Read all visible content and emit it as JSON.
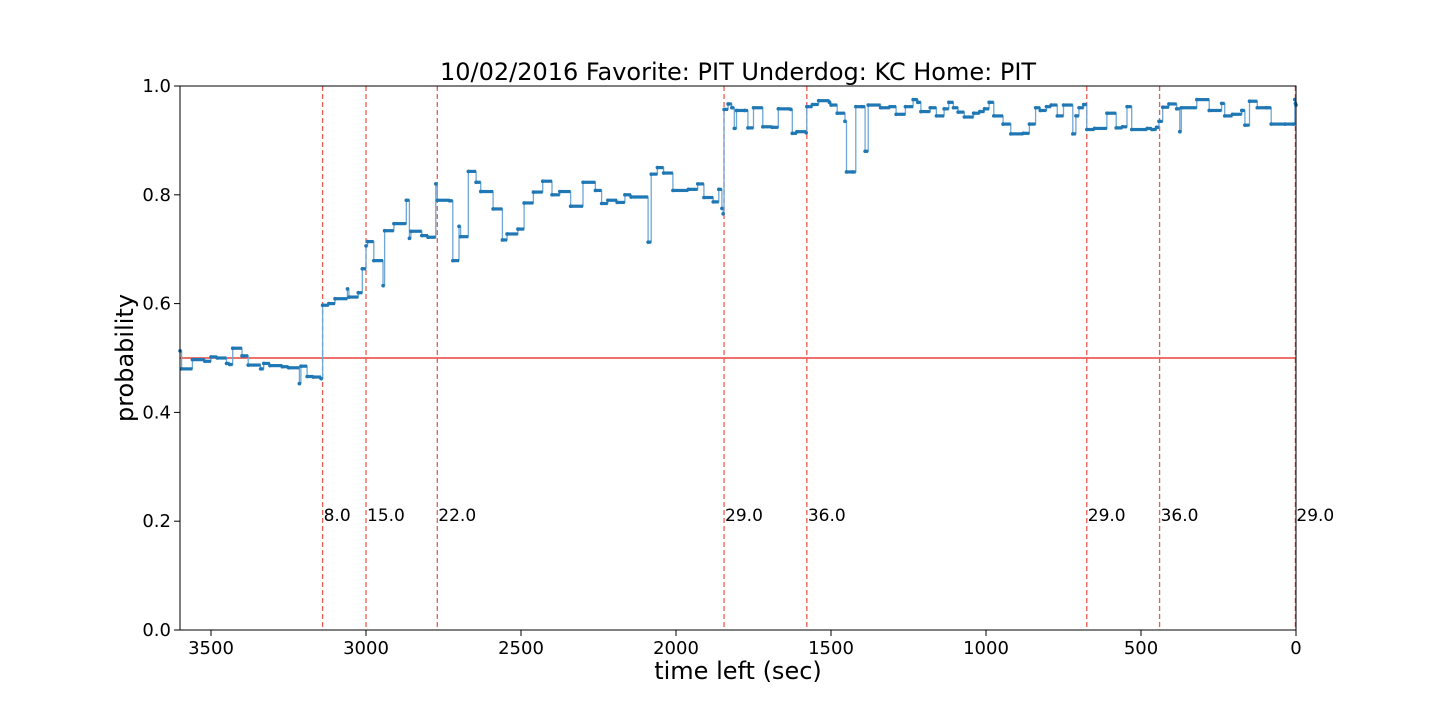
{
  "chart_data": {
    "type": "line",
    "title": "10/02/2016 Favorite: PIT Underdog: KC Home: PIT",
    "xlabel": "time left (sec)",
    "ylabel": "probability",
    "xlim": [
      3600,
      0
    ],
    "ylim": [
      0.0,
      1.0
    ],
    "xticks": [
      3500,
      3000,
      2500,
      2000,
      1500,
      1000,
      500,
      0
    ],
    "yticks": [
      0.0,
      0.2,
      0.4,
      0.6,
      0.8,
      1.0
    ],
    "xtick_labels": [
      "3500",
      "3000",
      "2500",
      "2000",
      "1500",
      "1000",
      "500",
      "0"
    ],
    "ytick_labels": [
      "0.0",
      "0.2",
      "0.4",
      "0.6",
      "0.8",
      "1.0"
    ],
    "grid": false,
    "reference_line": {
      "y": 0.5,
      "color": "#e8423a"
    },
    "scoring_events": [
      {
        "x": 3140,
        "label": "8.0"
      },
      {
        "x": 3000,
        "label": "15.0"
      },
      {
        "x": 2770,
        "label": "22.0"
      },
      {
        "x": 1845,
        "label": "29.0"
      },
      {
        "x": 1578,
        "label": "36.0"
      },
      {
        "x": 675,
        "label": "29.0"
      },
      {
        "x": 440,
        "label": "36.0"
      },
      {
        "x": 2,
        "label": "29.0"
      }
    ],
    "series": [
      {
        "color": "#1f77b4",
        "step": true,
        "points": [
          [
            3600,
            0.513
          ],
          [
            3595,
            0.48
          ],
          [
            3560,
            0.497
          ],
          [
            3520,
            0.494
          ],
          [
            3500,
            0.502
          ],
          [
            3480,
            0.5
          ],
          [
            3450,
            0.49
          ],
          [
            3440,
            0.488
          ],
          [
            3430,
            0.518
          ],
          [
            3400,
            0.504
          ],
          [
            3380,
            0.487
          ],
          [
            3340,
            0.48
          ],
          [
            3330,
            0.49
          ],
          [
            3310,
            0.486
          ],
          [
            3270,
            0.484
          ],
          [
            3250,
            0.482
          ],
          [
            3215,
            0.453
          ],
          [
            3210,
            0.485
          ],
          [
            3190,
            0.466
          ],
          [
            3170,
            0.465
          ],
          [
            3145,
            0.462
          ],
          [
            3140,
            0.597
          ],
          [
            3120,
            0.6
          ],
          [
            3100,
            0.609
          ],
          [
            3060,
            0.627
          ],
          [
            3055,
            0.612
          ],
          [
            3025,
            0.62
          ],
          [
            3012,
            0.664
          ],
          [
            3000,
            0.706
          ],
          [
            2995,
            0.714
          ],
          [
            2975,
            0.679
          ],
          [
            2945,
            0.633
          ],
          [
            2940,
            0.734
          ],
          [
            2910,
            0.747
          ],
          [
            2870,
            0.79
          ],
          [
            2860,
            0.72
          ],
          [
            2855,
            0.733
          ],
          [
            2820,
            0.725
          ],
          [
            2800,
            0.722
          ],
          [
            2775,
            0.82
          ],
          [
            2770,
            0.79
          ],
          [
            2730,
            0.789
          ],
          [
            2720,
            0.679
          ],
          [
            2700,
            0.742
          ],
          [
            2695,
            0.723
          ],
          [
            2670,
            0.843
          ],
          [
            2645,
            0.823
          ],
          [
            2630,
            0.806
          ],
          [
            2590,
            0.774
          ],
          [
            2560,
            0.717
          ],
          [
            2545,
            0.728
          ],
          [
            2510,
            0.737
          ],
          [
            2490,
            0.785
          ],
          [
            2460,
            0.805
          ],
          [
            2430,
            0.825
          ],
          [
            2400,
            0.8
          ],
          [
            2375,
            0.806
          ],
          [
            2340,
            0.779
          ],
          [
            2300,
            0.823
          ],
          [
            2260,
            0.808
          ],
          [
            2240,
            0.784
          ],
          [
            2220,
            0.79
          ],
          [
            2190,
            0.786
          ],
          [
            2165,
            0.8
          ],
          [
            2145,
            0.796
          ],
          [
            2090,
            0.713
          ],
          [
            2080,
            0.838
          ],
          [
            2060,
            0.85
          ],
          [
            2040,
            0.84
          ],
          [
            2010,
            0.808
          ],
          [
            1960,
            0.81
          ],
          [
            1930,
            0.82
          ],
          [
            1910,
            0.795
          ],
          [
            1880,
            0.787
          ],
          [
            1862,
            0.81
          ],
          [
            1852,
            0.775
          ],
          [
            1848,
            0.765
          ],
          [
            1845,
            0.957
          ],
          [
            1832,
            0.967
          ],
          [
            1820,
            0.96
          ],
          [
            1812,
            0.922
          ],
          [
            1805,
            0.955
          ],
          [
            1778,
            0.955
          ],
          [
            1768,
            0.923
          ],
          [
            1750,
            0.96
          ],
          [
            1720,
            0.925
          ],
          [
            1690,
            0.924
          ],
          [
            1670,
            0.958
          ],
          [
            1630,
            0.957
          ],
          [
            1625,
            0.913
          ],
          [
            1610,
            0.916
          ],
          [
            1580,
            0.914
          ],
          [
            1578,
            0.962
          ],
          [
            1560,
            0.966
          ],
          [
            1540,
            0.973
          ],
          [
            1505,
            0.97
          ],
          [
            1500,
            0.965
          ],
          [
            1480,
            0.95
          ],
          [
            1455,
            0.935
          ],
          [
            1450,
            0.842
          ],
          [
            1430,
            0.842
          ],
          [
            1420,
            0.962
          ],
          [
            1400,
            0.962
          ],
          [
            1390,
            0.88
          ],
          [
            1380,
            0.965
          ],
          [
            1340,
            0.96
          ],
          [
            1310,
            0.962
          ],
          [
            1290,
            0.948
          ],
          [
            1260,
            0.962
          ],
          [
            1235,
            0.975
          ],
          [
            1220,
            0.97
          ],
          [
            1210,
            0.953
          ],
          [
            1180,
            0.96
          ],
          [
            1160,
            0.945
          ],
          [
            1135,
            0.958
          ],
          [
            1120,
            0.97
          ],
          [
            1105,
            0.96
          ],
          [
            1090,
            0.952
          ],
          [
            1070,
            0.943
          ],
          [
            1040,
            0.95
          ],
          [
            1020,
            0.953
          ],
          [
            1005,
            0.958
          ],
          [
            990,
            0.97
          ],
          [
            975,
            0.945
          ],
          [
            945,
            0.93
          ],
          [
            920,
            0.912
          ],
          [
            880,
            0.913
          ],
          [
            860,
            0.93
          ],
          [
            840,
            0.96
          ],
          [
            825,
            0.955
          ],
          [
            805,
            0.962
          ],
          [
            790,
            0.965
          ],
          [
            770,
            0.945
          ],
          [
            750,
            0.965
          ],
          [
            720,
            0.912
          ],
          [
            710,
            0.945
          ],
          [
            700,
            0.96
          ],
          [
            685,
            0.966
          ],
          [
            675,
            0.92
          ],
          [
            650,
            0.922
          ],
          [
            610,
            0.95
          ],
          [
            580,
            0.923
          ],
          [
            560,
            0.925
          ],
          [
            545,
            0.962
          ],
          [
            530,
            0.92
          ],
          [
            480,
            0.922
          ],
          [
            465,
            0.92
          ],
          [
            450,
            0.924
          ],
          [
            442,
            0.935
          ],
          [
            430,
            0.961
          ],
          [
            410,
            0.967
          ],
          [
            385,
            0.958
          ],
          [
            375,
            0.916
          ],
          [
            370,
            0.96
          ],
          [
            320,
            0.975
          ],
          [
            280,
            0.955
          ],
          [
            240,
            0.968
          ],
          [
            230,
            0.945
          ],
          [
            205,
            0.948
          ],
          [
            175,
            0.955
          ],
          [
            165,
            0.928
          ],
          [
            150,
            0.972
          ],
          [
            125,
            0.96
          ],
          [
            95,
            0.96
          ],
          [
            80,
            0.93
          ],
          [
            35,
            0.93
          ],
          [
            8,
            0.93
          ],
          [
            4,
            0.975
          ],
          [
            2,
            0.968
          ],
          [
            0,
            0.965
          ]
        ]
      }
    ]
  }
}
